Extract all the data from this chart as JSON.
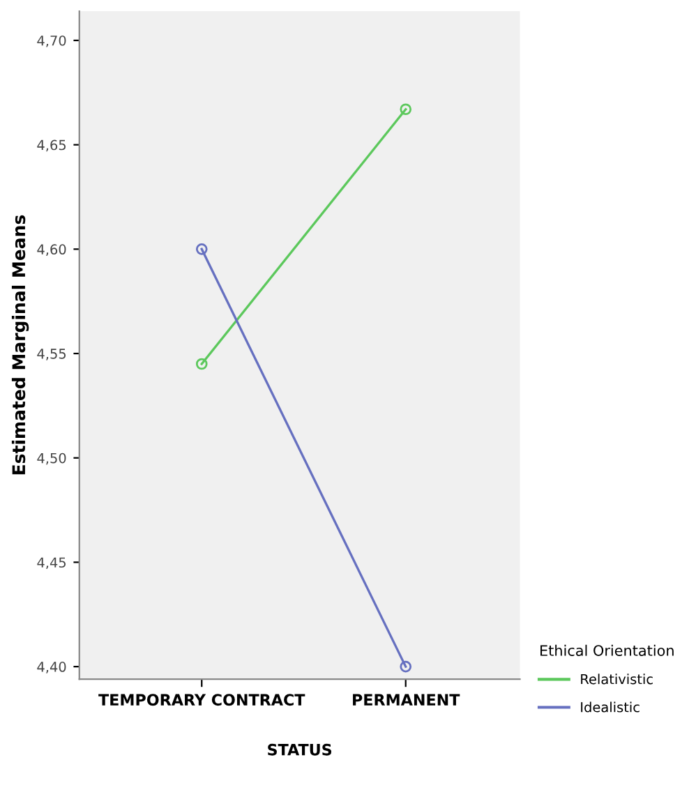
{
  "chart_data": {
    "type": "line",
    "xlabel": "STATUS",
    "ylabel": "Estimated Marginal Means",
    "legend_title": "Ethical Orientation",
    "categories": [
      "TEMPORARY CONTRACT",
      "PERMANENT"
    ],
    "series": [
      {
        "name": "Relativistic",
        "color": "#5cc85c",
        "values": [
          4.545,
          4.667
        ]
      },
      {
        "name": "Idealistic",
        "color": "#6670c0",
        "values": [
          4.6,
          4.4
        ]
      }
    ],
    "ylim": [
      4.394,
      4.714
    ],
    "yticks": [
      {
        "value": 4.4,
        "label": "4,40"
      },
      {
        "value": 4.45,
        "label": "4,45"
      },
      {
        "value": 4.5,
        "label": "4,50"
      },
      {
        "value": 4.55,
        "label": "4,55"
      },
      {
        "value": 4.6,
        "label": "4,60"
      },
      {
        "value": 4.65,
        "label": "4,65"
      },
      {
        "value": 4.7,
        "label": "4,70"
      }
    ],
    "marker": "circle",
    "line_style": "solid",
    "grid": false,
    "legend": "right"
  }
}
